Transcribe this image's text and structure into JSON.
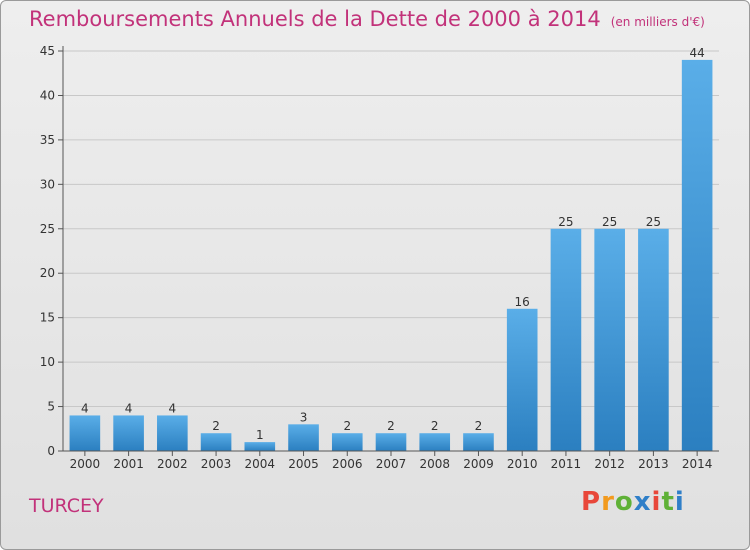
{
  "header": {
    "title": "Remboursements Annuels de la Dette de 2000 à 2014",
    "subtitle": "(en milliers d'€)"
  },
  "footer": {
    "town": "TURCEY",
    "brand_letters": [
      "P",
      "r",
      "o",
      "x",
      "i",
      "t",
      "i"
    ],
    "brand_colors": [
      "#e8473a",
      "#f29a1e",
      "#5fb137",
      "#2f7fc8",
      "#e8473a",
      "#5fb137",
      "#2f7fc8"
    ]
  },
  "colors": {
    "title": "#c2327a",
    "bar_top": "#5aaee8",
    "bar_bottom": "#2b7fc0",
    "axis": "#555555",
    "grid": "#c8c8c8"
  },
  "chart_data": {
    "type": "bar",
    "title": "Remboursements Annuels de la Dette de 2000 à 2014",
    "subtitle": "(en milliers d'€)",
    "categories": [
      "2000",
      "2001",
      "2002",
      "2003",
      "2004",
      "2005",
      "2006",
      "2007",
      "2008",
      "2009",
      "2010",
      "2011",
      "2012",
      "2013",
      "2014"
    ],
    "values": [
      4,
      4,
      4,
      2,
      1,
      3,
      2,
      2,
      2,
      2,
      16,
      25,
      25,
      25,
      44
    ],
    "ylim": [
      0,
      45
    ],
    "yticks": [
      0,
      5,
      10,
      15,
      20,
      25,
      30,
      35,
      40,
      45
    ],
    "grid": "horizontal",
    "data_labels": true
  }
}
